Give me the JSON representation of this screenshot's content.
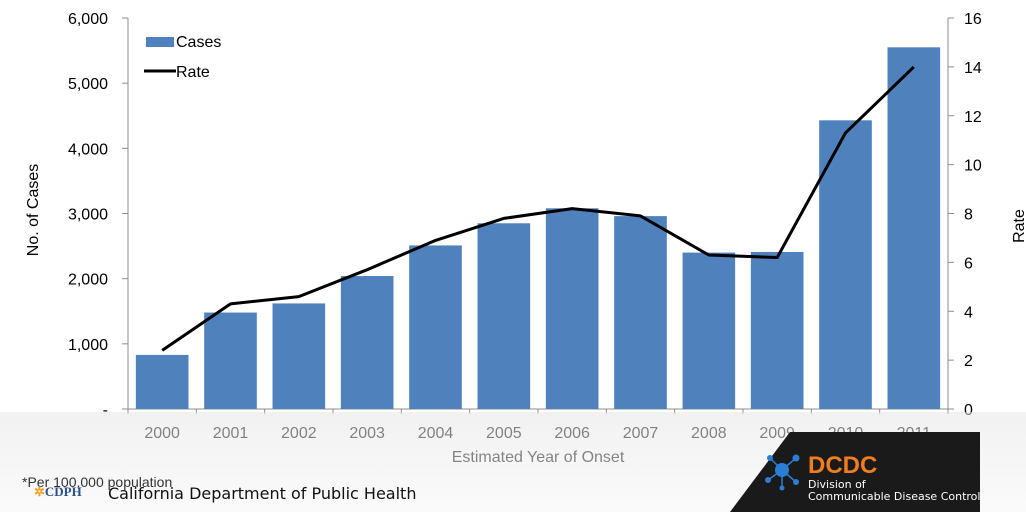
{
  "chart_data": {
    "type": "bar",
    "categories": [
      "2000",
      "2001",
      "2002",
      "2003",
      "2004",
      "2005",
      "2006",
      "2007",
      "2008",
      "2009",
      "2010",
      "2011"
    ],
    "series": [
      {
        "name": "Cases",
        "type": "bar",
        "axis": "left",
        "color": "#4f81bd",
        "values": [
          830,
          1480,
          1620,
          2040,
          2510,
          2850,
          3080,
          2960,
          2400,
          2410,
          4430,
          5550
        ]
      },
      {
        "name": "Rate",
        "type": "line",
        "axis": "right",
        "color": "#000000",
        "values": [
          2.4,
          4.3,
          4.6,
          5.7,
          6.9,
          7.8,
          8.2,
          7.9,
          6.3,
          6.2,
          11.3,
          14.0
        ]
      }
    ],
    "xlabel": "Estimated Year of Onset",
    "ylabel": "No. of Cases",
    "y2label": "Rate",
    "ylim": [
      0,
      6000
    ],
    "y2lim": [
      0,
      16
    ],
    "yticks": [
      "-",
      "1,000",
      "2,000",
      "3,000",
      "4,000",
      "5,000",
      "6,000"
    ],
    "y2ticks": [
      "0",
      "2",
      "4",
      "6",
      "8",
      "10",
      "12",
      "14",
      "16"
    ],
    "legend": {
      "position": "top-left",
      "entries": [
        "Cases",
        "Rate"
      ]
    },
    "grid": false
  },
  "footer": {
    "footnote": "*Per 100,000 population",
    "cdph_logo": "CDPH",
    "cdph_name": "California Department of Public Health",
    "dcdc_title": "DCDC",
    "dcdc_line1": "Division of",
    "dcdc_line2": "Communicable Disease Control",
    "colors": {
      "band": "#e8e8e8",
      "dark": "#1a1a1a",
      "accent": "#f07d1e",
      "logo_blue": "#2a7fd4"
    }
  }
}
